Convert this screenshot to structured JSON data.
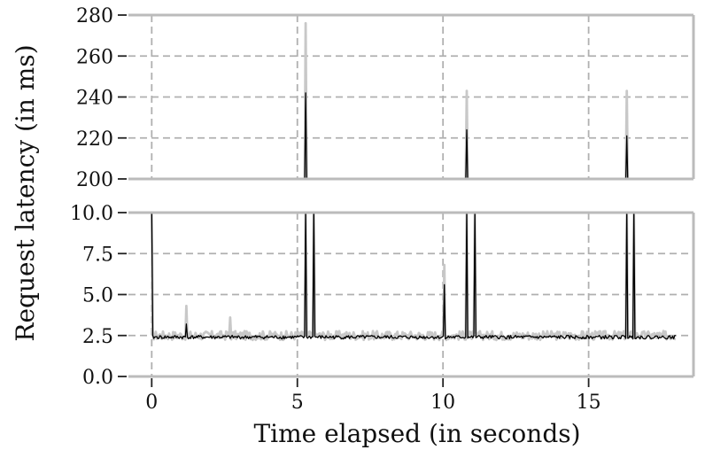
{
  "chart_data": {
    "type": "line",
    "title": "",
    "xlabel": "Time elapsed (in seconds)",
    "ylabel": "Request latency (in ms)",
    "grid": true,
    "broken_axis": true,
    "xlim": [
      -0.8,
      18.6
    ],
    "x_ticks": [
      0,
      5,
      10,
      15
    ],
    "x_tick_labels": [
      "0",
      "5",
      "10",
      "15"
    ],
    "panels": [
      {
        "name": "upper",
        "ylim": [
          200,
          280
        ],
        "y_ticks": [
          200,
          220,
          240,
          260,
          280
        ],
        "y_tick_labels": [
          "200",
          "220",
          "240",
          "260",
          "280"
        ]
      },
      {
        "name": "lower",
        "ylim": [
          0,
          10
        ],
        "y_ticks": [
          0,
          2.5,
          5,
          7.5,
          10
        ],
        "y_tick_labels": [
          "0.0",
          "2.5",
          "5.0",
          "7.5",
          "10.0"
        ]
      }
    ],
    "series": [
      {
        "color": "#c8c8c8",
        "baseline": 2.5,
        "spikes": [
          {
            "x": 0.0,
            "y": 12.0
          },
          {
            "x": 1.2,
            "y": 4.3
          },
          {
            "x": 2.7,
            "y": 3.6
          },
          {
            "x": 5.3,
            "y": 276
          },
          {
            "x": 5.55,
            "y": 12.0
          },
          {
            "x": 10.05,
            "y": 6.8
          },
          {
            "x": 10.8,
            "y": 243
          },
          {
            "x": 11.1,
            "y": 12.0
          },
          {
            "x": 16.3,
            "y": 243
          },
          {
            "x": 16.55,
            "y": 12.0
          }
        ]
      },
      {
        "color": "#000000",
        "baseline": 2.4,
        "spikes": [
          {
            "x": 0.0,
            "y": 12.0
          },
          {
            "x": 1.2,
            "y": 3.2
          },
          {
            "x": 5.3,
            "y": 242
          },
          {
            "x": 5.55,
            "y": 12.0
          },
          {
            "x": 10.05,
            "y": 5.6
          },
          {
            "x": 10.8,
            "y": 224
          },
          {
            "x": 11.1,
            "y": 12.0
          },
          {
            "x": 16.3,
            "y": 221
          },
          {
            "x": 16.55,
            "y": 12.0
          }
        ]
      }
    ],
    "x_end": 18.0
  }
}
